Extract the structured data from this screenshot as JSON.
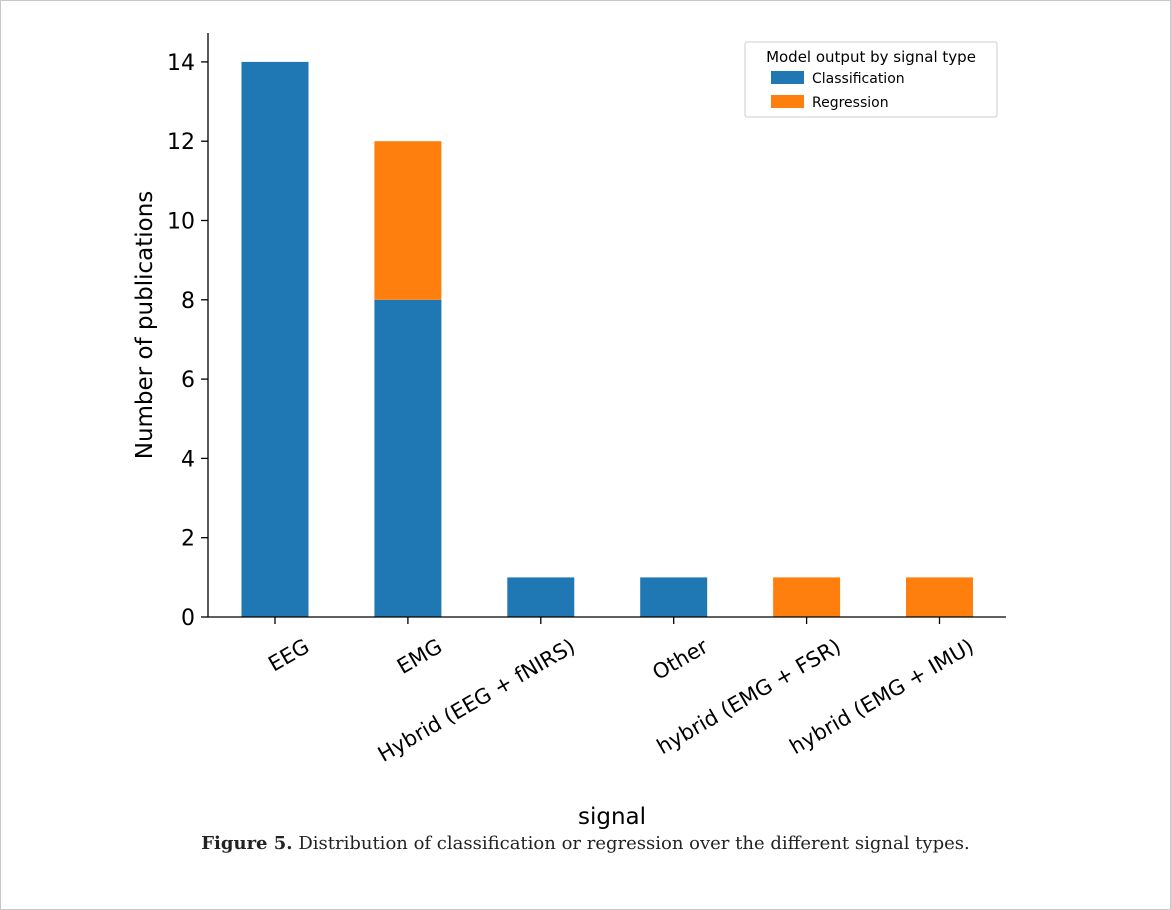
{
  "figure": {
    "label": "Figure 5.",
    "text": "Distribution of classification or regression over the different signal types."
  },
  "chart_data": {
    "type": "bar",
    "stacked": true,
    "xlabel": "signal",
    "ylabel": "Number of publications",
    "ylim": [
      0,
      14.7
    ],
    "yticks": [
      "0",
      "2",
      "4",
      "6",
      "8",
      "10",
      "12",
      "14"
    ],
    "categories": [
      "EEG",
      "EMG",
      "Hybrid (EEG + fNIRS)",
      "Other",
      "hybrid (EMG + FSR)",
      "hybrid (EMG + IMU)"
    ],
    "series": [
      {
        "name": "Classification",
        "color": "#1f77b4",
        "values": [
          14,
          8,
          1,
          1,
          0,
          0
        ]
      },
      {
        "name": "Regression",
        "color": "#ff7f0e",
        "values": [
          0,
          4,
          0,
          0,
          1,
          1
        ]
      }
    ],
    "legend": {
      "title": "Model output by signal type",
      "placement": "top-right"
    }
  }
}
